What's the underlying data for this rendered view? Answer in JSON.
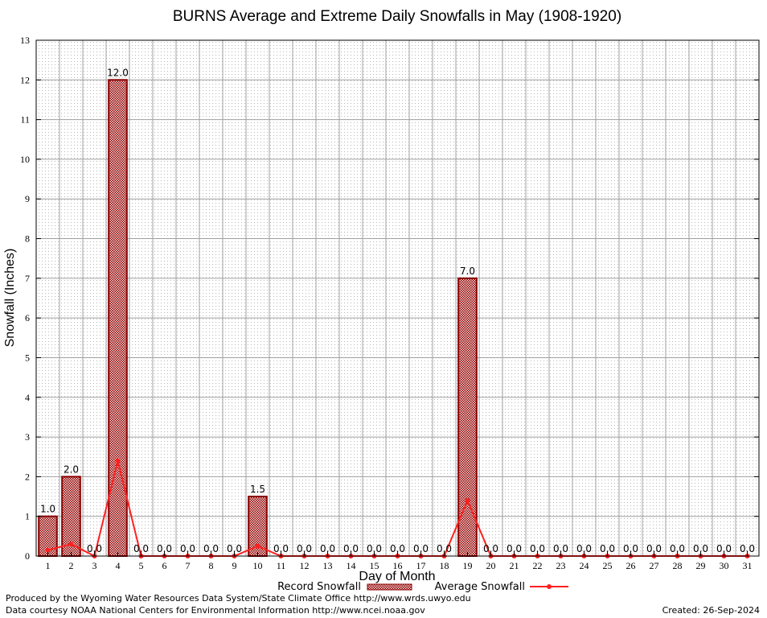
{
  "chart_data": {
    "type": "bar",
    "title": "BURNS Average and Extreme Daily Snowfalls in May (1908-1920)",
    "xlabel": "Day of Month",
    "ylabel": "Snowfall (Inches)",
    "ylim": [
      0,
      13
    ],
    "yticks": [
      "0",
      "1",
      "2",
      "3",
      "4",
      "5",
      "6",
      "7",
      "8",
      "9",
      "10",
      "11",
      "12",
      "13"
    ],
    "categories": [
      "1",
      "2",
      "3",
      "4",
      "5",
      "6",
      "7",
      "8",
      "9",
      "10",
      "11",
      "12",
      "13",
      "14",
      "15",
      "16",
      "17",
      "18",
      "19",
      "20",
      "21",
      "22",
      "23",
      "24",
      "25",
      "26",
      "27",
      "28",
      "29",
      "30",
      "31"
    ],
    "grid": true,
    "legend_position": "bottom",
    "series": [
      {
        "name": "Record Snowfall",
        "kind": "bar",
        "color": "#8b0000",
        "values": [
          1.0,
          2.0,
          0.0,
          12.0,
          0.0,
          0.0,
          0.0,
          0.0,
          0.0,
          1.5,
          0.0,
          0.0,
          0.0,
          0.0,
          0.0,
          0.0,
          0.0,
          0.0,
          7.0,
          0.0,
          0.0,
          0.0,
          0.0,
          0.0,
          0.0,
          0.0,
          0.0,
          0.0,
          0.0,
          0.0,
          0.0
        ],
        "labels": [
          "1.0",
          "2.0",
          "0.0",
          "12.0",
          "0.0",
          "0.0",
          "0.0",
          "0.0",
          "0.0",
          "1.5",
          "0.0",
          "0.0",
          "0.0",
          "0.0",
          "0.0",
          "0.0",
          "0.0",
          "0.0",
          "7.0",
          "0.0",
          "0.0",
          "0.0",
          "0.0",
          "0.0",
          "0.0",
          "0.0",
          "0.0",
          "0.0",
          "0.0",
          "0.0",
          "0.0"
        ]
      },
      {
        "name": "Average Snowfall",
        "kind": "line",
        "color": "#ff2020",
        "values": [
          0.15,
          0.3,
          0.0,
          2.4,
          0.0,
          0.0,
          0.0,
          0.0,
          0.0,
          0.25,
          0.0,
          0.0,
          0.0,
          0.0,
          0.0,
          0.0,
          0.0,
          0.0,
          1.4,
          0.0,
          0.0,
          0.0,
          0.0,
          0.0,
          0.0,
          0.0,
          0.0,
          0.0,
          0.0,
          0.0,
          0.0
        ]
      }
    ]
  },
  "footer": {
    "produced_by": "Produced by the Wyoming Water Resources Data System/State Climate Office http://www.wrds.uwyo.edu",
    "data_courtesy": "Data courtesy NOAA National Centers for Environmental Information http://www.ncei.noaa.gov",
    "created": "Created:  26-Sep-2024"
  }
}
